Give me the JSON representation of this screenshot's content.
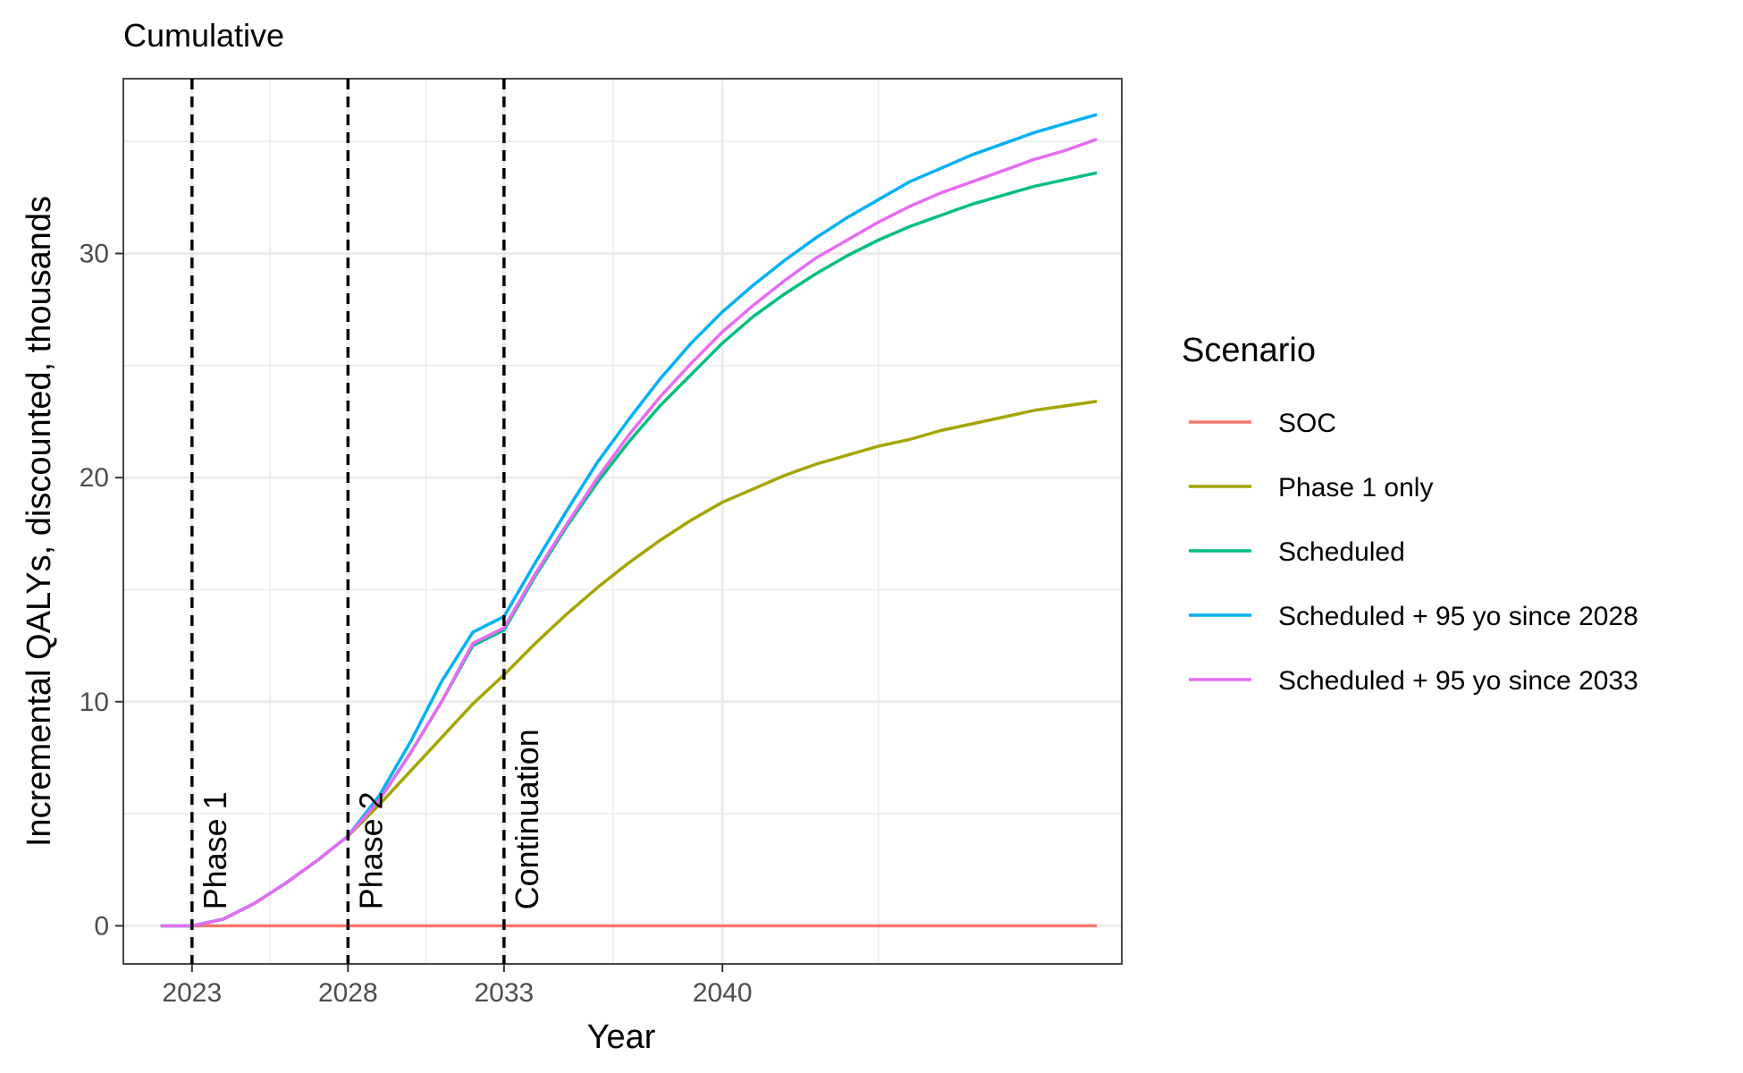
{
  "chart_data": {
    "type": "line",
    "title": "Cumulative",
    "xlabel": "Year",
    "ylabel": "Incremental QALYs, discounted, thousands",
    "xlim": [
      2020.8,
      2052.8
    ],
    "ylim": [
      -1.7,
      37.8
    ],
    "x_ticks": [
      2023,
      2028,
      2033,
      2040
    ],
    "x_tick_labels": [
      "2023",
      "2028",
      "2033",
      "2040"
    ],
    "x_minor": [
      2025.5,
      2030.5,
      2036.5,
      2045
    ],
    "y_ticks": [
      0,
      10,
      20,
      30
    ],
    "y_tick_labels": [
      "0",
      "10",
      "20",
      "30"
    ],
    "y_minor": [
      5,
      15,
      25,
      35
    ],
    "grid": true,
    "vlines": [
      {
        "x": 2023,
        "label": "Phase 1"
      },
      {
        "x": 2028,
        "label": "Phase 2"
      },
      {
        "x": 2033,
        "label": "Continuation"
      }
    ],
    "x": [
      2022,
      2023,
      2024,
      2025,
      2026,
      2027,
      2028,
      2029,
      2030,
      2031,
      2032,
      2033,
      2034,
      2035,
      2036,
      2037,
      2038,
      2039,
      2040,
      2041,
      2042,
      2043,
      2044,
      2045,
      2046,
      2047,
      2048,
      2049,
      2050,
      2051,
      2052
    ],
    "series": [
      {
        "name": "SOC",
        "color": "#F8766D",
        "values": [
          0,
          0,
          0,
          0,
          0,
          0,
          0,
          0,
          0,
          0,
          0,
          0,
          0,
          0,
          0,
          0,
          0,
          0,
          0,
          0,
          0,
          0,
          0,
          0,
          0,
          0,
          0,
          0,
          0,
          0,
          0
        ]
      },
      {
        "name": "Phase 1 only",
        "color": "#A3A500",
        "values": [
          0,
          0,
          0.3,
          1.0,
          1.9,
          2.9,
          4.0,
          5.4,
          6.9,
          8.4,
          9.9,
          11.2,
          12.6,
          13.9,
          15.1,
          16.2,
          17.2,
          18.1,
          18.9,
          19.5,
          20.1,
          20.6,
          21.0,
          21.4,
          21.7,
          22.1,
          22.4,
          22.7,
          23.0,
          23.2,
          23.4
        ]
      },
      {
        "name": "Scheduled",
        "color": "#00BF7D",
        "values": [
          0,
          0,
          0.3,
          1.0,
          1.9,
          2.9,
          4.0,
          5.6,
          7.7,
          10.0,
          12.5,
          13.2,
          15.6,
          17.8,
          19.8,
          21.6,
          23.2,
          24.6,
          26.0,
          27.2,
          28.2,
          29.1,
          29.9,
          30.6,
          31.2,
          31.7,
          32.2,
          32.6,
          33.0,
          33.3,
          33.6
        ]
      },
      {
        "name": "Scheduled + 95 yo since 2028",
        "color": "#00B0F6",
        "values": [
          0,
          0,
          0.3,
          1.0,
          1.9,
          2.9,
          4.0,
          5.8,
          8.2,
          10.9,
          13.1,
          13.8,
          16.2,
          18.5,
          20.7,
          22.6,
          24.4,
          26.0,
          27.4,
          28.6,
          29.7,
          30.7,
          31.6,
          32.4,
          33.2,
          33.8,
          34.4,
          34.9,
          35.4,
          35.8,
          36.2
        ]
      },
      {
        "name": "Scheduled + 95 yo since 2033",
        "color": "#E76BF3",
        "values": [
          0,
          0,
          0.3,
          1.0,
          1.9,
          2.9,
          4.0,
          5.6,
          7.7,
          10.0,
          12.6,
          13.3,
          15.7,
          17.9,
          20.0,
          21.9,
          23.6,
          25.1,
          26.5,
          27.7,
          28.8,
          29.8,
          30.6,
          31.4,
          32.1,
          32.7,
          33.2,
          33.7,
          34.2,
          34.6,
          35.1
        ]
      }
    ],
    "legend": {
      "title": "Scenario",
      "position": "right"
    }
  }
}
